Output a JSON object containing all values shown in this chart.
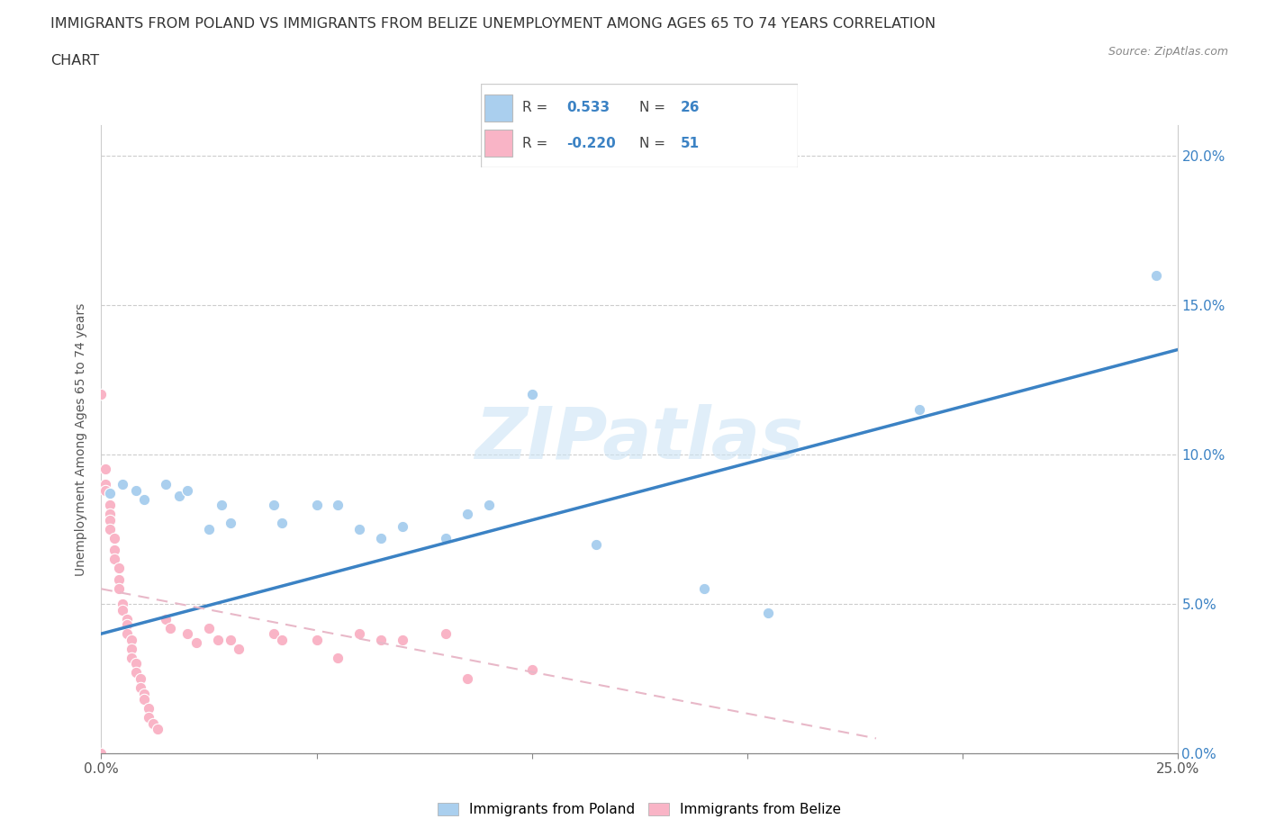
{
  "title_line1": "IMMIGRANTS FROM POLAND VS IMMIGRANTS FROM BELIZE UNEMPLOYMENT AMONG AGES 65 TO 74 YEARS CORRELATION",
  "title_line2": "CHART",
  "source": "Source: ZipAtlas.com",
  "ylabel": "Unemployment Among Ages 65 to 74 years",
  "xlim": [
    0.0,
    0.25
  ],
  "ylim": [
    0.0,
    0.21
  ],
  "xticks": [
    0.0,
    0.05,
    0.1,
    0.15,
    0.2,
    0.25
  ],
  "yticks": [
    0.0,
    0.05,
    0.1,
    0.15,
    0.2
  ],
  "xticklabels": [
    "0.0%",
    "",
    "",
    "",
    "",
    "25.0%"
  ],
  "yticklabels": [
    "",
    "",
    "",
    "",
    ""
  ],
  "right_yticklabels": [
    "0.0%",
    "5.0%",
    "10.0%",
    "15.0%",
    "20.0%"
  ],
  "poland_color": "#aacfee",
  "belize_color": "#f9b4c6",
  "poland_line_color": "#3b82c4",
  "belize_line_color": "#d0aab8",
  "R_poland": 0.533,
  "N_poland": 26,
  "R_belize": -0.22,
  "N_belize": 51,
  "poland_scatter": [
    [
      0.002,
      0.087
    ],
    [
      0.005,
      0.09
    ],
    [
      0.008,
      0.088
    ],
    [
      0.01,
      0.085
    ],
    [
      0.015,
      0.09
    ],
    [
      0.018,
      0.086
    ],
    [
      0.02,
      0.088
    ],
    [
      0.025,
      0.075
    ],
    [
      0.028,
      0.083
    ],
    [
      0.03,
      0.077
    ],
    [
      0.04,
      0.083
    ],
    [
      0.042,
      0.077
    ],
    [
      0.05,
      0.083
    ],
    [
      0.055,
      0.083
    ],
    [
      0.06,
      0.075
    ],
    [
      0.065,
      0.072
    ],
    [
      0.07,
      0.076
    ],
    [
      0.08,
      0.072
    ],
    [
      0.085,
      0.08
    ],
    [
      0.09,
      0.083
    ],
    [
      0.1,
      0.12
    ],
    [
      0.115,
      0.07
    ],
    [
      0.14,
      0.055
    ],
    [
      0.155,
      0.047
    ],
    [
      0.19,
      0.115
    ],
    [
      0.245,
      0.16
    ]
  ],
  "belize_scatter": [
    [
      0.0,
      0.12
    ],
    [
      0.001,
      0.095
    ],
    [
      0.001,
      0.09
    ],
    [
      0.001,
      0.088
    ],
    [
      0.002,
      0.083
    ],
    [
      0.002,
      0.08
    ],
    [
      0.002,
      0.078
    ],
    [
      0.002,
      0.075
    ],
    [
      0.003,
      0.072
    ],
    [
      0.003,
      0.068
    ],
    [
      0.003,
      0.065
    ],
    [
      0.004,
      0.062
    ],
    [
      0.004,
      0.058
    ],
    [
      0.004,
      0.055
    ],
    [
      0.005,
      0.05
    ],
    [
      0.005,
      0.048
    ],
    [
      0.006,
      0.045
    ],
    [
      0.006,
      0.043
    ],
    [
      0.006,
      0.04
    ],
    [
      0.007,
      0.038
    ],
    [
      0.007,
      0.035
    ],
    [
      0.007,
      0.032
    ],
    [
      0.008,
      0.03
    ],
    [
      0.008,
      0.027
    ],
    [
      0.009,
      0.025
    ],
    [
      0.009,
      0.022
    ],
    [
      0.01,
      0.02
    ],
    [
      0.01,
      0.018
    ],
    [
      0.011,
      0.015
    ],
    [
      0.011,
      0.012
    ],
    [
      0.012,
      0.01
    ],
    [
      0.013,
      0.008
    ],
    [
      0.015,
      0.045
    ],
    [
      0.016,
      0.042
    ],
    [
      0.02,
      0.04
    ],
    [
      0.022,
      0.037
    ],
    [
      0.025,
      0.042
    ],
    [
      0.027,
      0.038
    ],
    [
      0.03,
      0.038
    ],
    [
      0.032,
      0.035
    ],
    [
      0.04,
      0.04
    ],
    [
      0.042,
      0.038
    ],
    [
      0.05,
      0.038
    ],
    [
      0.055,
      0.032
    ],
    [
      0.06,
      0.04
    ],
    [
      0.065,
      0.038
    ],
    [
      0.07,
      0.038
    ],
    [
      0.08,
      0.04
    ],
    [
      0.085,
      0.025
    ],
    [
      0.1,
      0.028
    ],
    [
      0.0,
      0.0
    ]
  ],
  "poland_trendline_x": [
    0.0,
    0.25
  ],
  "poland_trendline_y": [
    0.04,
    0.135
  ],
  "belize_trendline_x": [
    0.0,
    0.18
  ],
  "belize_trendline_y": [
    0.055,
    0.005
  ]
}
